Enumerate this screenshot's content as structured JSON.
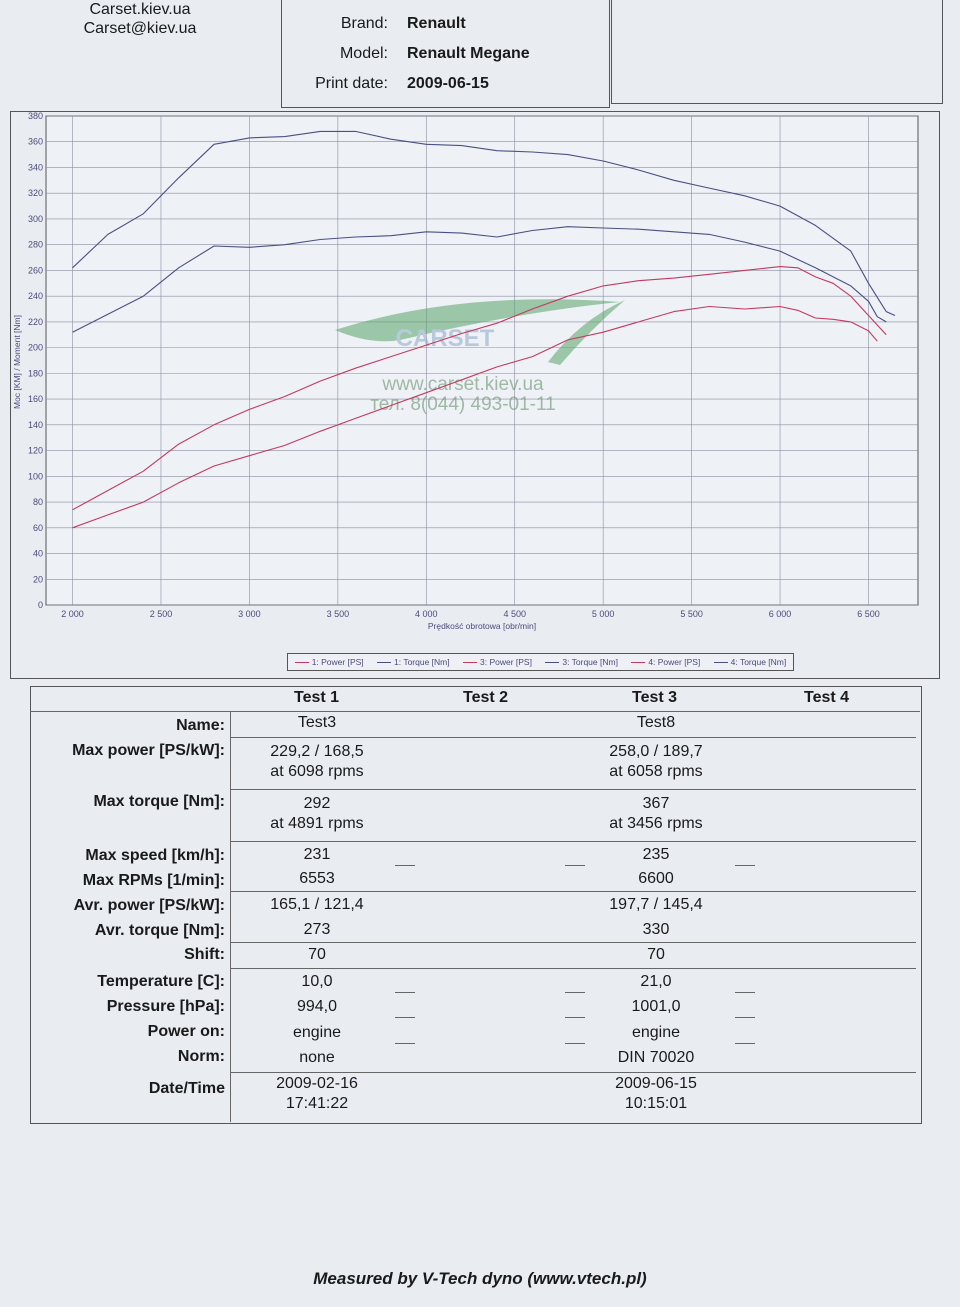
{
  "header": {
    "contact_site": "Carset.kiev.ua",
    "contact_email": "Carset@kiev.ua",
    "brand_label": "Brand:",
    "brand_value": "Renault",
    "model_label": "Model:",
    "model_value": "Renault Megane",
    "print_date_label": "Print date:",
    "print_date_value": "2009-06-15"
  },
  "watermark": {
    "logo_text": "CARSET",
    "site": "www.carset.kiev.ua",
    "phone": "тел. 8(044) 493-01-11"
  },
  "chart_data": {
    "type": "line",
    "xlabel": "Prędkość obrotowa [obr/min]",
    "ylabel": "Moc [KM] / Moment [Nm]",
    "xlim": [
      1850,
      6780
    ],
    "ylim": [
      0,
      380
    ],
    "x_ticks": [
      2000,
      2500,
      3000,
      3500,
      4000,
      4500,
      5000,
      5500,
      6000,
      6500
    ],
    "x_tick_labels": [
      "2 000",
      "2 500",
      "3 000",
      "3 500",
      "4 000",
      "4 500",
      "5 000",
      "5 500",
      "6 000",
      "6 500"
    ],
    "y_ticks": [
      0,
      20,
      40,
      60,
      80,
      100,
      120,
      140,
      160,
      180,
      200,
      220,
      240,
      260,
      280,
      300,
      320,
      340,
      360,
      380
    ],
    "grid": true,
    "legend_position": "bottom",
    "colors": {
      "power": "#c43a5e",
      "torque": "#4a5080"
    },
    "legend": [
      "1: Power [PS]",
      "1: Torque [Nm]",
      "3: Power [PS]",
      "3: Torque [Nm]",
      "4: Power [PS]",
      "4: Torque [Nm]"
    ],
    "series": [
      {
        "name": "1: Power [PS]",
        "color": "#c43a5e",
        "x": [
          2000,
          2200,
          2400,
          2600,
          2800,
          3000,
          3200,
          3400,
          3600,
          3800,
          4000,
          4200,
          4400,
          4600,
          4800,
          5000,
          5200,
          5400,
          5600,
          5800,
          6000,
          6100,
          6200,
          6300,
          6400,
          6500,
          6550
        ],
        "y": [
          60,
          70,
          80,
          95,
          108,
          116,
          124,
          135,
          145,
          155,
          165,
          175,
          185,
          193,
          206,
          212,
          220,
          228,
          232,
          230,
          232,
          229,
          223,
          222,
          220,
          213,
          205
        ]
      },
      {
        "name": "1: Torque [Nm]",
        "color": "#4a5080",
        "x": [
          2000,
          2200,
          2400,
          2600,
          2800,
          3000,
          3200,
          3400,
          3600,
          3800,
          4000,
          4200,
          4400,
          4600,
          4800,
          5000,
          5200,
          5400,
          5600,
          5800,
          6000,
          6200,
          6400,
          6500,
          6550,
          6600
        ],
        "y": [
          212,
          226,
          240,
          262,
          279,
          278,
          280,
          284,
          286,
          287,
          290,
          289,
          286,
          291,
          294,
          293,
          292,
          290,
          288,
          282,
          275,
          262,
          248,
          236,
          224,
          220
        ]
      },
      {
        "name": "3: Power [PS]",
        "color": "#c43a5e",
        "x": [
          2000,
          2200,
          2400,
          2600,
          2800,
          3000,
          3200,
          3400,
          3600,
          3800,
          4000,
          4200,
          4400,
          4600,
          4800,
          5000,
          5200,
          5400,
          5600,
          5800,
          6000,
          6100,
          6200,
          6300,
          6400,
          6500,
          6600
        ],
        "y": [
          74,
          89,
          104,
          125,
          140,
          152,
          162,
          174,
          184,
          193,
          202,
          211,
          219,
          230,
          240,
          248,
          252,
          254,
          257,
          260,
          263,
          262,
          255,
          250,
          240,
          225,
          210
        ]
      },
      {
        "name": "3: Torque [Nm]",
        "color": "#4a5080",
        "x": [
          2000,
          2200,
          2400,
          2600,
          2800,
          3000,
          3200,
          3400,
          3600,
          3800,
          4000,
          4200,
          4400,
          4600,
          4800,
          5000,
          5200,
          5400,
          5600,
          5800,
          6000,
          6200,
          6400,
          6500,
          6600,
          6650
        ],
        "y": [
          262,
          288,
          304,
          332,
          358,
          363,
          364,
          368,
          368,
          362,
          358,
          357,
          353,
          352,
          350,
          345,
          338,
          330,
          324,
          318,
          310,
          295,
          275,
          250,
          228,
          225
        ]
      }
    ]
  },
  "results": {
    "col_headers": [
      "Test 1",
      "Test 2",
      "Test 3",
      "Test 4"
    ],
    "labels": {
      "name": "Name:",
      "max_power": "Max power [PS/kW]:",
      "max_torque": "Max torque [Nm]:",
      "max_speed": "Max speed [km/h]:",
      "max_rpms": "Max RPMs [1/min]:",
      "avr_power": "Avr. power [PS/kW]:",
      "avr_torque": "Avr. torque [Nm]:",
      "shift": "Shift:",
      "temperature": "Temperature [C]:",
      "pressure": "Pressure [hPa]:",
      "power_on": "Power on:",
      "norm": "Norm:",
      "datetime": "Date/Time"
    },
    "test1": {
      "name": "Test3",
      "max_power": "229,2 / 168,5",
      "max_power_at": "at 6098 rpms",
      "max_torque": "292",
      "max_torque_at": "at 4891 rpms",
      "max_speed": "231",
      "max_rpms": "6553",
      "avr_power": "165,1 / 121,4",
      "avr_torque": "273",
      "shift": "70",
      "temperature": "10,0",
      "pressure": "994,0",
      "power_on": "engine",
      "norm": "none",
      "date": "2009-02-16",
      "time": "17:41:22"
    },
    "test3": {
      "name": "Test8",
      "max_power": "258,0 / 189,7",
      "max_power_at": "at 6058 rpms",
      "max_torque": "367",
      "max_torque_at": "at 3456 rpms",
      "max_speed": "235",
      "max_rpms": "6600",
      "avr_power": "197,7 / 145,4",
      "avr_torque": "330",
      "shift": "70",
      "temperature": "21,0",
      "pressure": "1001,0",
      "power_on": "engine",
      "norm": "DIN 70020",
      "date": "2009-06-15",
      "time": "10:15:01"
    }
  },
  "footer": "Measured by V-Tech dyno (www.vtech.pl)"
}
